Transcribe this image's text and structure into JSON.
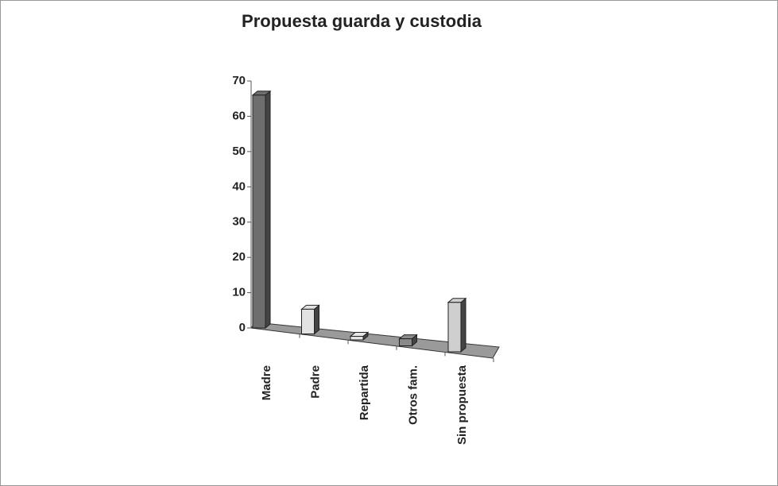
{
  "chart_data": {
    "type": "bar3d",
    "title": "Propuesta guarda y  custodia",
    "categories": [
      "Madre",
      "Padre",
      "Repartida",
      "Otros fam.",
      "Sin propuesta"
    ],
    "values": [
      66,
      7,
      1,
      2,
      14
    ],
    "colors": [
      "#6e6e6e",
      "#e2e2e2",
      "#e6e6e6",
      "#8a8a8a",
      "#cfcfcf"
    ],
    "ylim": [
      0,
      70
    ],
    "yticks": [
      0,
      10,
      20,
      30,
      40,
      50,
      60,
      70
    ]
  }
}
